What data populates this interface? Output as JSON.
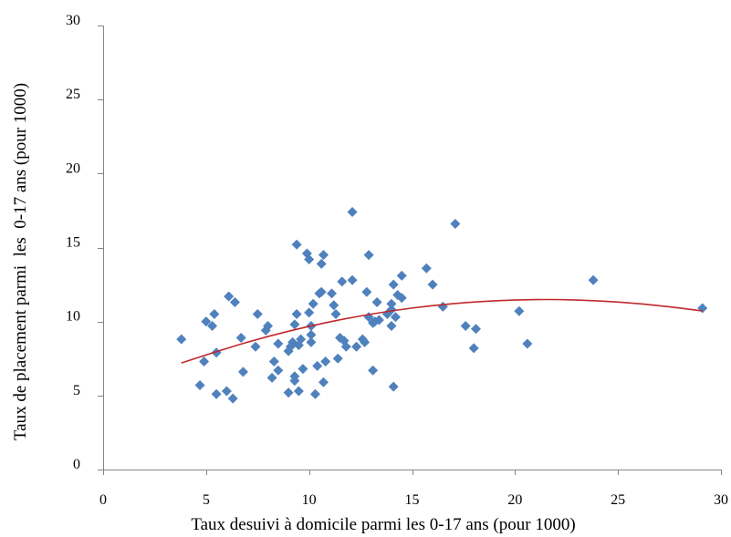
{
  "chart_data": {
    "type": "scatter",
    "xlabel": "Taux desuivi à domicile parmi les 0-17 ans (pour 1000)",
    "ylabel": "Taux de placement parmi  les  0-17 ans (pour 1000)",
    "xlim": [
      0,
      30
    ],
    "ylim": [
      0,
      30
    ],
    "xticks": [
      0,
      5,
      10,
      15,
      20,
      25,
      30
    ],
    "yticks": [
      0,
      5,
      10,
      15,
      20,
      25,
      30
    ],
    "grid": false,
    "legend": "none",
    "series": [
      {
        "x": [
          3.8,
          4.7,
          4.9,
          5.0,
          5.3,
          5.4,
          5.5,
          5.5,
          6.0,
          6.1,
          6.4,
          6.3,
          6.7,
          6.8,
          7.4,
          7.5,
          7.9,
          8.0,
          8.2,
          8.3,
          8.5,
          8.5,
          9.0,
          9.0,
          9.1,
          9.2,
          9.3,
          9.3,
          9.3,
          9.4,
          9.4,
          9.5,
          9.5,
          9.6,
          9.7,
          9.9,
          10.0,
          10.0,
          10.1,
          10.1,
          10.1,
          10.2,
          10.3,
          10.4,
          10.5,
          10.6,
          10.6,
          10.7,
          10.7,
          10.8,
          11.1,
          11.2,
          11.3,
          11.4,
          11.5,
          11.6,
          11.7,
          11.8,
          12.1,
          12.1,
          12.3,
          12.6,
          12.7,
          12.8,
          12.9,
          12.9,
          13.1,
          13.1,
          13.2,
          13.3,
          13.4,
          13.8,
          14.0,
          14.0,
          14.0,
          14.1,
          14.1,
          14.2,
          14.3,
          14.5,
          14.5,
          15.7,
          16.0,
          16.5,
          17.1,
          17.6,
          18.0,
          18.1,
          20.2,
          20.6,
          23.8,
          29.1
        ],
        "y": [
          8.8,
          5.7,
          7.3,
          10.0,
          9.7,
          10.5,
          5.1,
          7.9,
          5.3,
          11.7,
          11.3,
          4.8,
          8.9,
          6.6,
          8.3,
          10.5,
          9.4,
          9.7,
          6.2,
          7.3,
          6.7,
          8.5,
          8.0,
          5.2,
          8.3,
          8.6,
          6.0,
          6.3,
          9.8,
          10.5,
          15.2,
          8.4,
          5.3,
          8.8,
          6.8,
          14.6,
          14.2,
          10.6,
          9.7,
          8.6,
          9.1,
          11.2,
          5.1,
          7.0,
          11.9,
          12.0,
          13.9,
          14.5,
          5.9,
          7.3,
          11.9,
          11.1,
          10.5,
          7.5,
          8.9,
          12.7,
          8.7,
          8.3,
          12.8,
          17.4,
          8.3,
          8.8,
          8.6,
          12.0,
          14.5,
          10.3,
          6.7,
          9.9,
          10.0,
          11.3,
          10.1,
          10.5,
          10.8,
          11.2,
          9.7,
          5.6,
          12.5,
          10.3,
          11.8,
          11.6,
          13.1,
          13.6,
          12.5,
          11.0,
          16.6,
          9.7,
          8.2,
          9.5,
          10.7,
          8.5,
          12.8,
          10.9
        ]
      }
    ],
    "trendline": {
      "type": "polynomial",
      "x": [
        3.8,
        6,
        8,
        10,
        12,
        14,
        16,
        18,
        20,
        22,
        24,
        26,
        28,
        29.1
      ],
      "y": [
        7.2,
        8.2,
        9.0,
        9.69,
        10.26,
        10.73,
        11.09,
        11.33,
        11.47,
        11.5,
        11.41,
        11.22,
        10.92,
        10.71
      ]
    },
    "colors": {
      "points": "#4F81BD",
      "trendline": "#C0282D"
    }
  }
}
